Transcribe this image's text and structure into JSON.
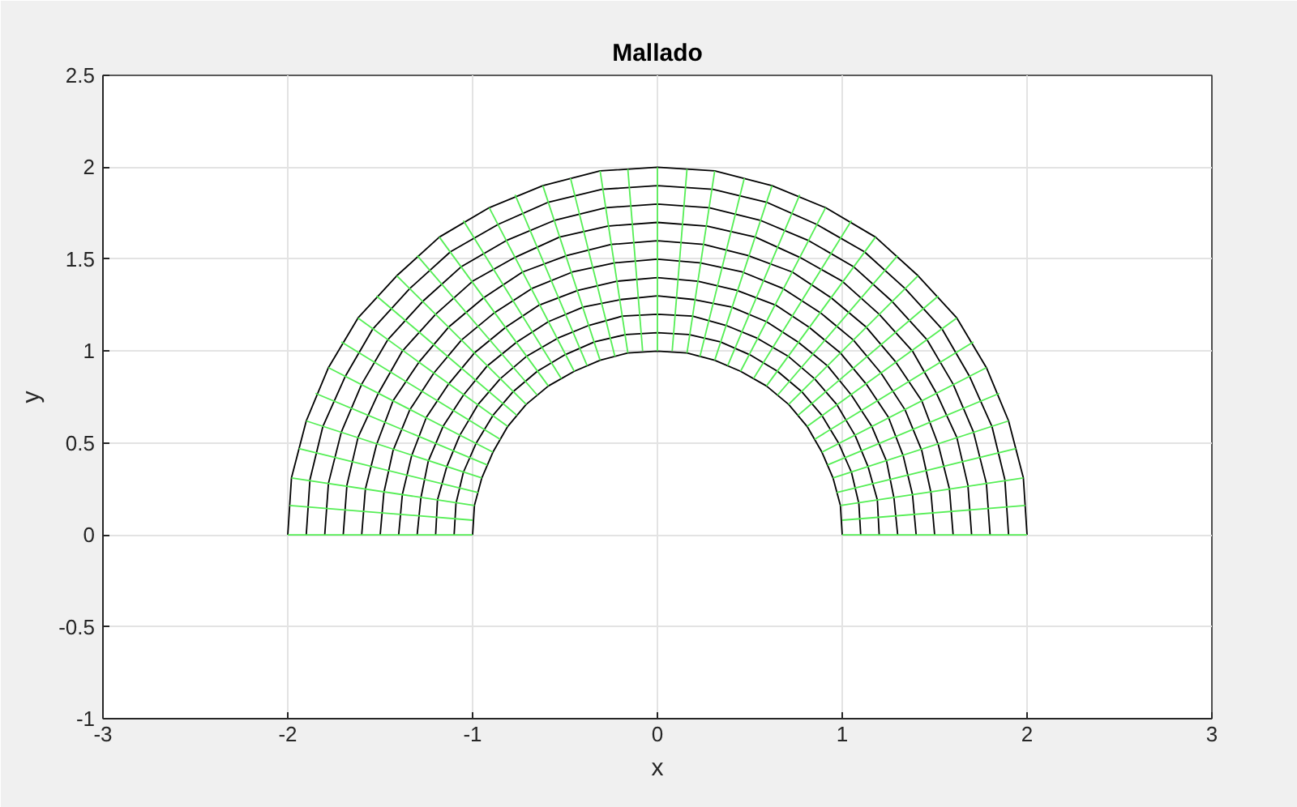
{
  "chart_data": {
    "type": "line",
    "title": "Mallado",
    "xlabel": "x",
    "ylabel": "y",
    "xlim": [
      -3,
      3
    ],
    "ylim": [
      -1,
      2.5
    ],
    "xticks": [
      -3,
      -2,
      -1,
      0,
      1,
      2,
      3
    ],
    "yticks": [
      -1,
      -0.5,
      0,
      0.5,
      1,
      1.5,
      2,
      2.5
    ],
    "grid": true,
    "marker": "none",
    "line_style": "solid",
    "series": [
      {
        "color": "#000000",
        "x": [
          1,
          0.99,
          0.95,
          0.89,
          0.81,
          0.71,
          0.59,
          0.45,
          0.31,
          0.16,
          0,
          -0.16,
          -0.31,
          -0.45,
          -0.59,
          -0.71,
          -0.81,
          -0.89,
          -0.95,
          -0.99,
          -1
        ],
        "values": [
          0,
          0.16,
          0.31,
          0.45,
          0.59,
          0.71,
          0.81,
          0.89,
          0.95,
          0.99,
          1,
          0.99,
          0.95,
          0.89,
          0.81,
          0.71,
          0.59,
          0.45,
          0.31,
          0.16,
          0
        ]
      },
      {
        "color": "#000000",
        "x": [
          1.1,
          1.09,
          1.05,
          0.98,
          0.89,
          0.78,
          0.65,
          0.5,
          0.34,
          0.17,
          0,
          -0.17,
          -0.34,
          -0.5,
          -0.65,
          -0.78,
          -0.89,
          -0.98,
          -1.05,
          -1.09,
          -1.1
        ],
        "values": [
          0,
          0.17,
          0.34,
          0.5,
          0.65,
          0.78,
          0.89,
          0.98,
          1.05,
          1.09,
          1.1,
          1.09,
          1.05,
          0.98,
          0.89,
          0.78,
          0.65,
          0.5,
          0.34,
          0.17,
          0
        ]
      },
      {
        "color": "#000000",
        "x": [
          1.2,
          1.19,
          1.14,
          1.07,
          0.97,
          0.85,
          0.71,
          0.54,
          0.37,
          0.19,
          0,
          -0.19,
          -0.37,
          -0.54,
          -0.71,
          -0.85,
          -0.97,
          -1.07,
          -1.14,
          -1.19,
          -1.2
        ],
        "values": [
          0,
          0.19,
          0.37,
          0.54,
          0.71,
          0.85,
          0.97,
          1.07,
          1.14,
          1.19,
          1.2,
          1.19,
          1.14,
          1.07,
          0.97,
          0.85,
          0.71,
          0.54,
          0.37,
          0.19,
          0
        ]
      },
      {
        "color": "#000000",
        "x": [
          1.3,
          1.28,
          1.24,
          1.16,
          1.05,
          0.92,
          0.76,
          0.59,
          0.4,
          0.2,
          0,
          -0.2,
          -0.4,
          -0.59,
          -0.76,
          -0.92,
          -1.05,
          -1.16,
          -1.24,
          -1.28,
          -1.3
        ],
        "values": [
          0,
          0.2,
          0.4,
          0.59,
          0.76,
          0.92,
          1.05,
          1.16,
          1.24,
          1.28,
          1.3,
          1.28,
          1.24,
          1.16,
          1.05,
          0.92,
          0.76,
          0.59,
          0.4,
          0.2,
          0
        ]
      },
      {
        "color": "#000000",
        "x": [
          1.4,
          1.38,
          1.33,
          1.25,
          1.13,
          0.99,
          0.82,
          0.64,
          0.43,
          0.22,
          0,
          -0.22,
          -0.43,
          -0.64,
          -0.82,
          -0.99,
          -1.13,
          -1.25,
          -1.33,
          -1.38,
          -1.4
        ],
        "values": [
          0,
          0.22,
          0.43,
          0.64,
          0.82,
          0.99,
          1.13,
          1.25,
          1.33,
          1.38,
          1.4,
          1.38,
          1.33,
          1.25,
          1.13,
          0.99,
          0.82,
          0.64,
          0.43,
          0.22,
          0
        ]
      },
      {
        "color": "#000000",
        "x": [
          1.5,
          1.48,
          1.43,
          1.34,
          1.21,
          1.06,
          0.88,
          0.68,
          0.46,
          0.23,
          0,
          -0.23,
          -0.46,
          -0.68,
          -0.88,
          -1.06,
          -1.21,
          -1.34,
          -1.43,
          -1.48,
          -1.5
        ],
        "values": [
          0,
          0.23,
          0.46,
          0.68,
          0.88,
          1.06,
          1.21,
          1.34,
          1.43,
          1.48,
          1.5,
          1.48,
          1.43,
          1.34,
          1.21,
          1.06,
          0.88,
          0.68,
          0.46,
          0.23,
          0
        ]
      },
      {
        "color": "#000000",
        "x": [
          1.6,
          1.58,
          1.52,
          1.43,
          1.29,
          1.13,
          0.94,
          0.73,
          0.49,
          0.25,
          0,
          -0.25,
          -0.49,
          -0.73,
          -0.94,
          -1.13,
          -1.29,
          -1.43,
          -1.52,
          -1.58,
          -1.6
        ],
        "values": [
          0,
          0.25,
          0.49,
          0.73,
          0.94,
          1.13,
          1.29,
          1.43,
          1.52,
          1.58,
          1.6,
          1.58,
          1.52,
          1.43,
          1.29,
          1.13,
          0.94,
          0.73,
          0.49,
          0.25,
          0
        ]
      },
      {
        "color": "#000000",
        "x": [
          1.7,
          1.68,
          1.62,
          1.51,
          1.38,
          1.2,
          1.0,
          0.77,
          0.53,
          0.27,
          0,
          -0.27,
          -0.53,
          -0.77,
          -1.0,
          -1.2,
          -1.38,
          -1.51,
          -1.62,
          -1.68,
          -1.7
        ],
        "values": [
          0,
          0.27,
          0.53,
          0.77,
          1.0,
          1.2,
          1.38,
          1.51,
          1.62,
          1.68,
          1.7,
          1.68,
          1.62,
          1.51,
          1.38,
          1.2,
          1.0,
          0.77,
          0.53,
          0.27,
          0
        ]
      },
      {
        "color": "#000000",
        "x": [
          1.8,
          1.78,
          1.71,
          1.6,
          1.46,
          1.27,
          1.06,
          0.82,
          0.56,
          0.28,
          0,
          -0.28,
          -0.56,
          -0.82,
          -1.06,
          -1.27,
          -1.46,
          -1.6,
          -1.71,
          -1.78,
          -1.8
        ],
        "values": [
          0,
          0.28,
          0.56,
          0.82,
          1.06,
          1.27,
          1.46,
          1.6,
          1.71,
          1.78,
          1.8,
          1.78,
          1.71,
          1.6,
          1.46,
          1.27,
          1.06,
          0.82,
          0.56,
          0.28,
          0
        ]
      },
      {
        "color": "#000000",
        "x": [
          1.9,
          1.88,
          1.81,
          1.69,
          1.54,
          1.34,
          1.12,
          0.86,
          0.59,
          0.3,
          0,
          -0.3,
          -0.59,
          -0.86,
          -1.12,
          -1.34,
          -1.54,
          -1.69,
          -1.81,
          -1.88,
          -1.9
        ],
        "values": [
          0,
          0.3,
          0.59,
          0.86,
          1.12,
          1.34,
          1.54,
          1.69,
          1.81,
          1.88,
          1.9,
          1.88,
          1.81,
          1.69,
          1.54,
          1.34,
          1.12,
          0.86,
          0.59,
          0.3,
          0
        ]
      },
      {
        "color": "#000000",
        "x": [
          2,
          1.98,
          1.9,
          1.78,
          1.62,
          1.41,
          1.18,
          0.91,
          0.62,
          0.31,
          0,
          -0.31,
          -0.62,
          -0.91,
          -1.18,
          -1.41,
          -1.62,
          -1.78,
          -1.9,
          -1.98,
          -2
        ],
        "values": [
          0,
          0.31,
          0.62,
          0.91,
          1.18,
          1.41,
          1.62,
          1.78,
          1.9,
          1.98,
          2,
          1.98,
          1.9,
          1.78,
          1.62,
          1.41,
          1.18,
          0.91,
          0.62,
          0.31,
          0
        ]
      },
      {
        "color": "#55ee55",
        "x": [
          1,
          2
        ],
        "values": [
          0,
          0
        ]
      },
      {
        "color": "#55ee55",
        "x": [
          1,
          1.99
        ],
        "values": [
          0.08,
          0.16
        ]
      },
      {
        "color": "#55ee55",
        "x": [
          0.99,
          1.98
        ],
        "values": [
          0.16,
          0.31
        ]
      },
      {
        "color": "#55ee55",
        "x": [
          0.97,
          1.94
        ],
        "values": [
          0.23,
          0.47
        ]
      },
      {
        "color": "#55ee55",
        "x": [
          0.95,
          1.9
        ],
        "values": [
          0.31,
          0.62
        ]
      },
      {
        "color": "#55ee55",
        "x": [
          0.92,
          1.85
        ],
        "values": [
          0.38,
          0.77
        ]
      },
      {
        "color": "#55ee55",
        "x": [
          0.89,
          1.78
        ],
        "values": [
          0.45,
          0.91
        ]
      },
      {
        "color": "#55ee55",
        "x": [
          0.85,
          1.71
        ],
        "values": [
          0.52,
          1.05
        ]
      },
      {
        "color": "#55ee55",
        "x": [
          0.81,
          1.62
        ],
        "values": [
          0.59,
          1.18
        ]
      },
      {
        "color": "#55ee55",
        "x": [
          0.76,
          1.52
        ],
        "values": [
          0.65,
          1.3
        ]
      },
      {
        "color": "#55ee55",
        "x": [
          0.71,
          1.41
        ],
        "values": [
          0.71,
          1.41
        ]
      },
      {
        "color": "#55ee55",
        "x": [
          0.65,
          1.3
        ],
        "values": [
          0.76,
          1.52
        ]
      },
      {
        "color": "#55ee55",
        "x": [
          0.59,
          1.18
        ],
        "values": [
          0.81,
          1.62
        ]
      },
      {
        "color": "#55ee55",
        "x": [
          0.52,
          1.05
        ],
        "values": [
          0.85,
          1.71
        ]
      },
      {
        "color": "#55ee55",
        "x": [
          0.45,
          0.91
        ],
        "values": [
          0.89,
          1.78
        ]
      },
      {
        "color": "#55ee55",
        "x": [
          0.38,
          0.77
        ],
        "values": [
          0.92,
          1.85
        ]
      },
      {
        "color": "#55ee55",
        "x": [
          0.31,
          0.62
        ],
        "values": [
          0.95,
          1.9
        ]
      },
      {
        "color": "#55ee55",
        "x": [
          0.23,
          0.47
        ],
        "values": [
          0.97,
          1.94
        ]
      },
      {
        "color": "#55ee55",
        "x": [
          0.16,
          0.31
        ],
        "values": [
          0.99,
          1.98
        ]
      },
      {
        "color": "#55ee55",
        "x": [
          0.08,
          0.16
        ],
        "values": [
          1,
          1.99
        ]
      },
      {
        "color": "#55ee55",
        "x": [
          0,
          0
        ],
        "values": [
          1,
          2
        ]
      },
      {
        "color": "#55ee55",
        "x": [
          -0.08,
          -0.16
        ],
        "values": [
          1,
          1.99
        ]
      },
      {
        "color": "#55ee55",
        "x": [
          -0.16,
          -0.31
        ],
        "values": [
          0.99,
          1.98
        ]
      },
      {
        "color": "#55ee55",
        "x": [
          -0.23,
          -0.47
        ],
        "values": [
          0.97,
          1.94
        ]
      },
      {
        "color": "#55ee55",
        "x": [
          -0.31,
          -0.62
        ],
        "values": [
          0.95,
          1.9
        ]
      },
      {
        "color": "#55ee55",
        "x": [
          -0.38,
          -0.77
        ],
        "values": [
          0.92,
          1.85
        ]
      },
      {
        "color": "#55ee55",
        "x": [
          -0.45,
          -0.91
        ],
        "values": [
          0.89,
          1.78
        ]
      },
      {
        "color": "#55ee55",
        "x": [
          -0.52,
          -1.05
        ],
        "values": [
          0.85,
          1.71
        ]
      },
      {
        "color": "#55ee55",
        "x": [
          -0.59,
          -1.18
        ],
        "values": [
          0.81,
          1.62
        ]
      },
      {
        "color": "#55ee55",
        "x": [
          -0.65,
          -1.3
        ],
        "values": [
          0.76,
          1.52
        ]
      },
      {
        "color": "#55ee55",
        "x": [
          -0.71,
          -1.41
        ],
        "values": [
          0.71,
          1.41
        ]
      },
      {
        "color": "#55ee55",
        "x": [
          -0.76,
          -1.52
        ],
        "values": [
          0.65,
          1.3
        ]
      },
      {
        "color": "#55ee55",
        "x": [
          -0.81,
          -1.62
        ],
        "values": [
          0.59,
          1.18
        ]
      },
      {
        "color": "#55ee55",
        "x": [
          -0.85,
          -1.71
        ],
        "values": [
          0.52,
          1.05
        ]
      },
      {
        "color": "#55ee55",
        "x": [
          -0.89,
          -1.78
        ],
        "values": [
          0.45,
          0.91
        ]
      },
      {
        "color": "#55ee55",
        "x": [
          -0.92,
          -1.85
        ],
        "values": [
          0.38,
          0.77
        ]
      },
      {
        "color": "#55ee55",
        "x": [
          -0.95,
          -1.9
        ],
        "values": [
          0.31,
          0.62
        ]
      },
      {
        "color": "#55ee55",
        "x": [
          -0.97,
          -1.94
        ],
        "values": [
          0.23,
          0.47
        ]
      },
      {
        "color": "#55ee55",
        "x": [
          -0.99,
          -1.98
        ],
        "values": [
          0.16,
          0.31
        ]
      },
      {
        "color": "#55ee55",
        "x": [
          -1,
          -1.99
        ],
        "values": [
          0.08,
          0.16
        ]
      },
      {
        "color": "#55ee55",
        "x": [
          -1,
          -2
        ],
        "values": [
          0,
          0
        ]
      }
    ]
  }
}
